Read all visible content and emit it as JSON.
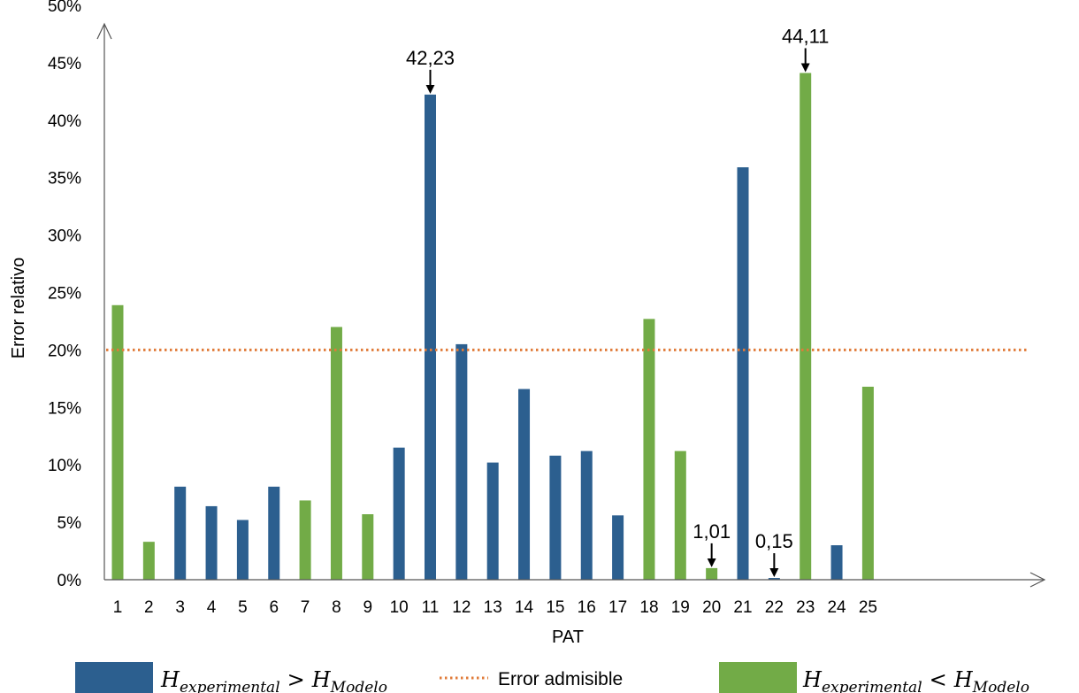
{
  "chart_data": {
    "type": "bar",
    "xlabel": "PAT",
    "ylabel": "Error relativo",
    "ylim": [
      0,
      50
    ],
    "y_ticks": [
      "0%",
      "5%",
      "10%",
      "15%",
      "20%",
      "25%",
      "30%",
      "35%",
      "40%",
      "45%",
      "50%"
    ],
    "categories": [
      "1",
      "2",
      "3",
      "4",
      "5",
      "6",
      "7",
      "8",
      "9",
      "10",
      "11",
      "12",
      "13",
      "14",
      "15",
      "16",
      "17",
      "18",
      "19",
      "20",
      "21",
      "22",
      "23",
      "24",
      "25"
    ],
    "values": [
      23.9,
      3.3,
      8.1,
      6.4,
      5.2,
      8.1,
      6.9,
      22.0,
      5.7,
      11.5,
      42.23,
      20.5,
      10.2,
      16.6,
      10.8,
      11.2,
      5.6,
      22.7,
      11.2,
      1.01,
      35.9,
      0.15,
      44.11,
      3.0,
      16.8
    ],
    "bar_groups": [
      "green",
      "green",
      "blue",
      "blue",
      "blue",
      "blue",
      "green",
      "green",
      "green",
      "blue",
      "blue",
      "blue",
      "blue",
      "blue",
      "blue",
      "blue",
      "blue",
      "green",
      "green",
      "green",
      "blue",
      "blue",
      "green",
      "blue",
      "green"
    ],
    "reference_line": {
      "name": "Error admisible",
      "value": 20,
      "color": "#e07b39",
      "style": "dotted"
    },
    "annotations": [
      {
        "category": "11",
        "text": "42,23"
      },
      {
        "category": "23",
        "text": "44,11"
      },
      {
        "category": "20",
        "text": "1,01"
      },
      {
        "category": "22",
        "text": "0,15"
      }
    ],
    "colors": {
      "blue": "#2c5f8f",
      "green": "#72ab47"
    },
    "legend": [
      {
        "key": "blue",
        "H": "H",
        "sub1": "experimental",
        "op": ">",
        "sub2": "Modelo"
      },
      {
        "key": "ref",
        "label": "Error admisible"
      },
      {
        "key": "green",
        "H": "H",
        "sub1": "experimental",
        "op": "<",
        "sub2": "Modelo"
      }
    ],
    "legend_position": "bottom",
    "grid": false
  }
}
